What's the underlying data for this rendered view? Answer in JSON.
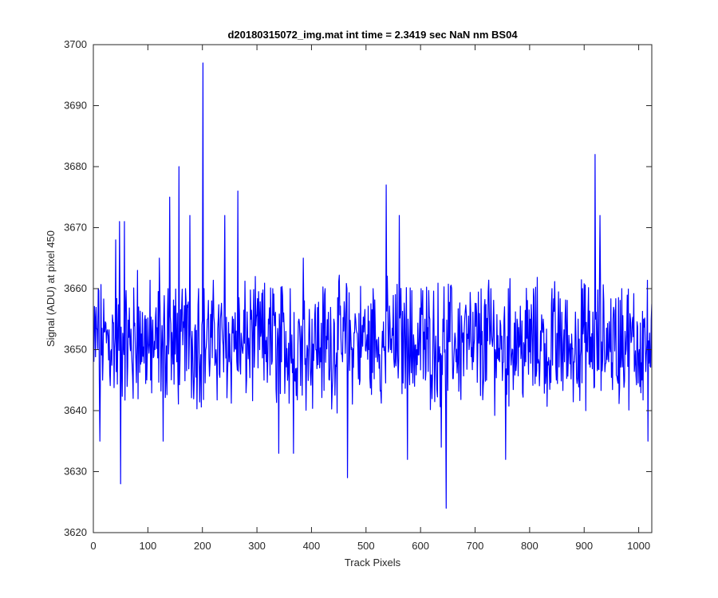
{
  "chart_data": {
    "type": "line",
    "title": "d20180315072_img.mat int time = 2.3419 sec  NaN nm BS04",
    "xlabel": "Track Pixels",
    "ylabel": "Signal (ADU) at pixel 450",
    "xlim": [
      0,
      1024
    ],
    "ylim": [
      3620,
      3700
    ],
    "xticks": [
      0,
      100,
      200,
      300,
      400,
      500,
      600,
      700,
      800,
      900,
      1000
    ],
    "yticks": [
      3620,
      3630,
      3640,
      3650,
      3660,
      3670,
      3680,
      3690,
      3700
    ],
    "grid": false,
    "legend": "none",
    "line_color": "#0000ff",
    "series": [
      {
        "x_start": 1,
        "x_step": 8,
        "values": [
          3648,
          3660,
          3645,
          3653,
          3650,
          3668,
          3655,
          3671,
          3652,
          3642,
          3663,
          3648,
          3655,
          3645,
          3650,
          3665,
          3655,
          3660,
          3650,
          3648,
          3653,
          3660,
          3675,
          3645,
          3660,
          3675,
          3655,
          3658,
          3650,
          3655,
          3697,
          3648,
          3655,
          3660,
          3650,
          3645,
          3655,
          3662,
          3650,
          3645,
          3655,
          3660,
          3650,
          3648,
          3653,
          3660,
          3645,
          3655,
          3665,
          3650,
          3655,
          3650,
          3648,
          3660,
          3645,
          3655,
          3650,
          3648,
          3660,
          3650,
          3655,
          3645,
          3655,
          3650,
          3660,
          3648,
          3650,
          3655,
          3650,
          3648,
          3677,
          3650,
          3655,
          3648,
          3650,
          3660,
          3645,
          3655,
          3650,
          3648,
          3655,
          3650,
          3660,
          3648,
          3645,
          3655,
          3650,
          3648,
          3650,
          3653,
          3645,
          3660,
          3650,
          3648,
          3655,
          3660,
          3650,
          3655,
          3650,
          3648,
          3655,
          3650,
          3648,
          3655,
          3648,
          3660,
          3645,
          3650,
          3655,
          3650,
          3648,
          3655,
          3660,
          3650,
          3648,
          3655,
          3682,
          3650,
          3648,
          3655,
          3645,
          3660,
          3650,
          3655,
          3648,
          3650,
          3655,
          3650
        ]
      }
    ],
    "spikes": [
      {
        "x": 12,
        "y": 3635
      },
      {
        "x": 48,
        "y": 3671
      },
      {
        "x": 50,
        "y": 3628
      },
      {
        "x": 128,
        "y": 3635
      },
      {
        "x": 140,
        "y": 3675
      },
      {
        "x": 157,
        "y": 3680
      },
      {
        "x": 201,
        "y": 3697
      },
      {
        "x": 265,
        "y": 3676
      },
      {
        "x": 340,
        "y": 3633
      },
      {
        "x": 367,
        "y": 3633
      },
      {
        "x": 466,
        "y": 3629
      },
      {
        "x": 537,
        "y": 3677
      },
      {
        "x": 576,
        "y": 3632
      },
      {
        "x": 638,
        "y": 3634
      },
      {
        "x": 647,
        "y": 3624
      },
      {
        "x": 756,
        "y": 3632
      },
      {
        "x": 920,
        "y": 3682
      },
      {
        "x": 1017,
        "y": 3635
      }
    ]
  }
}
